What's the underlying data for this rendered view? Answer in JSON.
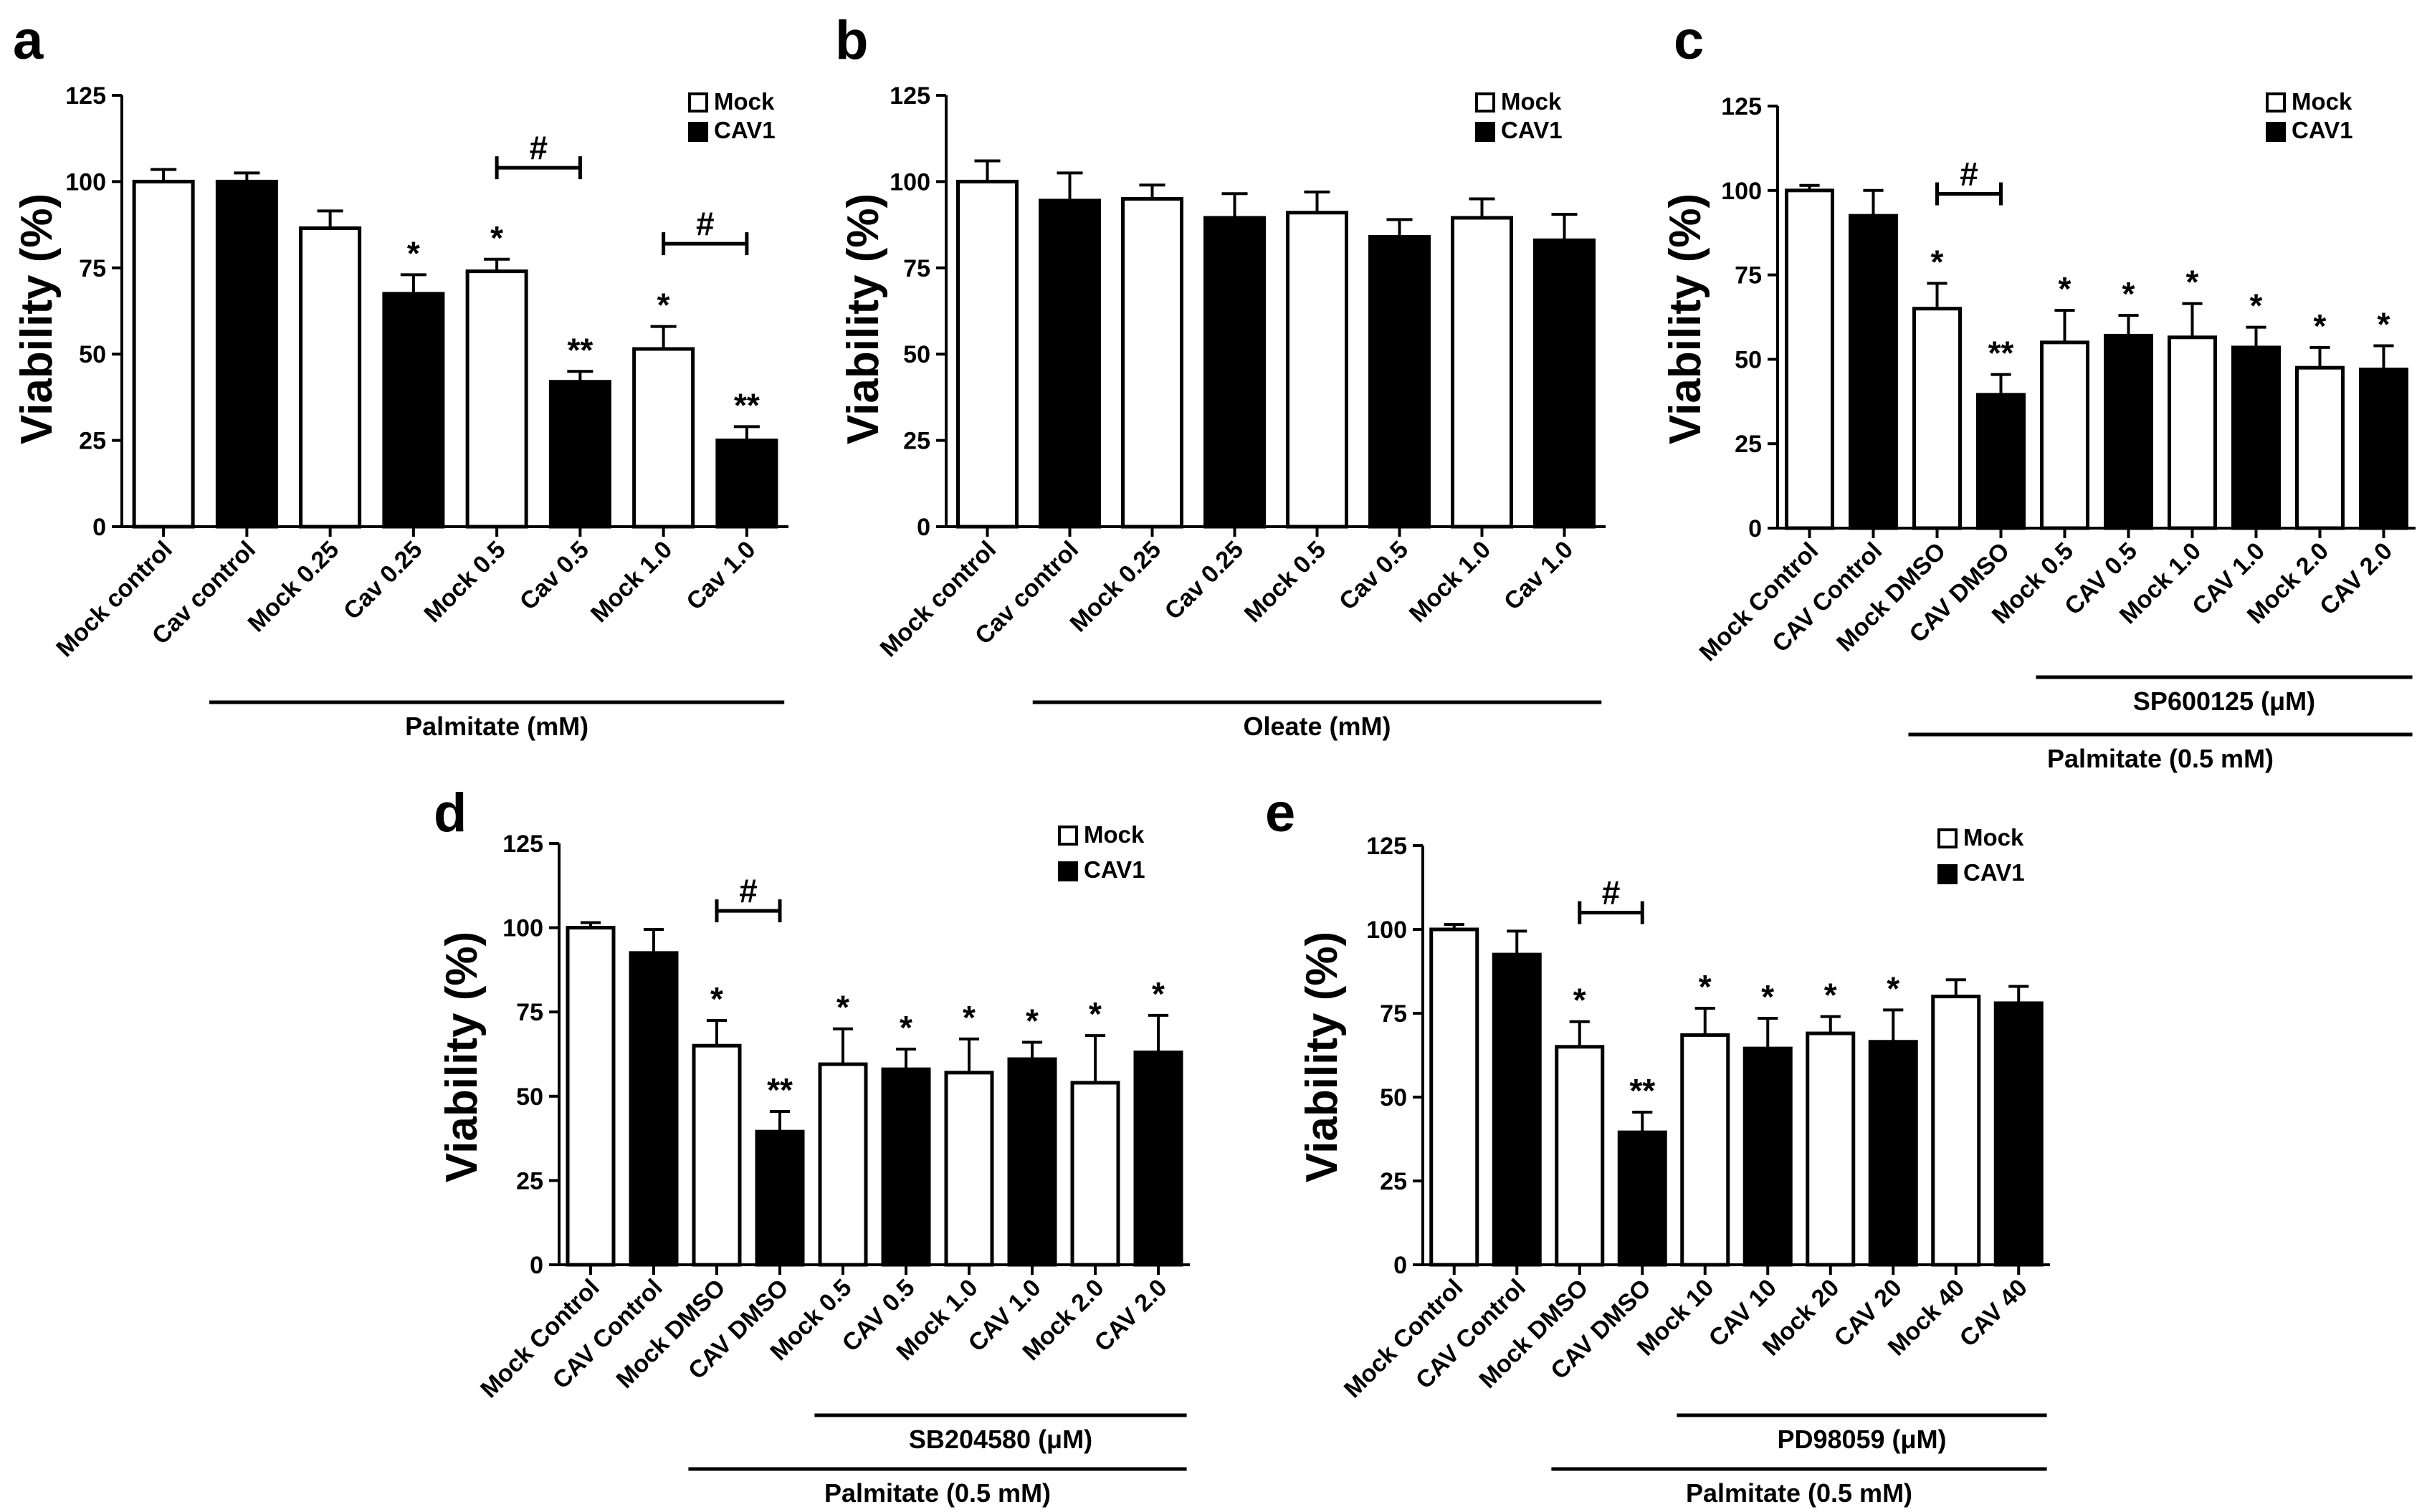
{
  "chart_data": [
    {
      "panel": "a",
      "type": "bar",
      "ylabel": "Viability (%)",
      "ylim": [
        0,
        125
      ],
      "yticks": [
        "0",
        "25",
        "50",
        "75",
        "100",
        "125"
      ],
      "legend": [
        "Mock",
        "CAV1"
      ],
      "categories": [
        "Mock control",
        "Cav control",
        "Mock 0.25",
        "Cav 0.25",
        "Mock 0.5",
        "Cav 0.5",
        "Mock 1.0",
        "Cav 1.0"
      ],
      "fill": [
        "Mock",
        "CAV1",
        "Mock",
        "CAV1",
        "Mock",
        "CAV1",
        "Mock",
        "CAV1"
      ],
      "values": [
        100,
        100,
        86.5,
        67.5,
        74,
        42,
        51.5,
        25
      ],
      "errors": [
        3.5,
        2.5,
        5,
        5.5,
        3.5,
        3,
        6.5,
        4
      ],
      "marks": [
        "",
        "",
        "",
        "*",
        "*",
        "**",
        "*",
        "**"
      ],
      "hash": [
        {
          "from": 4,
          "to": 5,
          "text": "#",
          "level": 104
        },
        {
          "from": 6,
          "to": 7,
          "text": "#",
          "level": 82
        }
      ],
      "groups": [
        {
          "label": "Palmitate (mM)",
          "from": 1,
          "to": 7
        }
      ]
    },
    {
      "panel": "b",
      "type": "bar",
      "ylabel": "Viability (%)",
      "ylim": [
        0,
        125
      ],
      "yticks": [
        "0",
        "25",
        "50",
        "75",
        "100",
        "125"
      ],
      "legend": [
        "Mock",
        "CAV1"
      ],
      "categories": [
        "Mock control",
        "Cav control",
        "Mock 0.25",
        "Cav 0.25",
        "Mock 0.5",
        "Cav 0.5",
        "Mock 1.0",
        "Cav 1.0"
      ],
      "fill": [
        "Mock",
        "CAV1",
        "Mock",
        "CAV1",
        "Mock",
        "CAV1",
        "Mock",
        "CAV1"
      ],
      "values": [
        100,
        94.5,
        95,
        89.5,
        91,
        84,
        89.5,
        83
      ],
      "errors": [
        6,
        8,
        4,
        7,
        6,
        5,
        5.5,
        7.5
      ],
      "marks": [
        "",
        "",
        "",
        "",
        "",
        "",
        "",
        ""
      ],
      "hash": [],
      "groups": [
        {
          "label": "Oleate (mM)",
          "from": 1,
          "to": 7
        }
      ]
    },
    {
      "panel": "c",
      "type": "bar",
      "ylabel": "Viability (%)",
      "ylim": [
        0,
        125
      ],
      "yticks": [
        "0",
        "25",
        "50",
        "75",
        "100",
        "125"
      ],
      "legend": [
        "Mock",
        "CAV1"
      ],
      "categories": [
        "Mock Control",
        "CAV Control",
        "Mock DMSO",
        "CAV DMSO",
        "Mock 0.5",
        "CAV 0.5",
        "Mock 1.0",
        "CAV 1.0",
        "Mock 2.0",
        "CAV  2.0"
      ],
      "fill": [
        "Mock",
        "CAV1",
        "Mock",
        "CAV1",
        "Mock",
        "CAV1",
        "Mock",
        "CAV1",
        "Mock",
        "CAV1"
      ],
      "values": [
        100,
        92.5,
        65,
        39.5,
        55,
        57,
        56.5,
        53.5,
        47.5,
        47
      ],
      "errors": [
        1.5,
        7.5,
        7.5,
        6,
        9.5,
        6,
        10,
        6,
        6,
        7
      ],
      "marks": [
        "",
        "",
        "*",
        "**",
        "*",
        "*",
        "*",
        "*",
        "*",
        "*"
      ],
      "hash": [
        {
          "from": 2,
          "to": 3,
          "text": "#",
          "level": 99
        }
      ],
      "groups": [
        {
          "label": "SP600125 (μM)",
          "from": 4,
          "to": 9
        },
        {
          "label": "Palmitate (0.5 mM)",
          "from": 2,
          "to": 9
        }
      ]
    },
    {
      "panel": "d",
      "type": "bar",
      "ylabel": "Viability (%)",
      "ylim": [
        0,
        125
      ],
      "yticks": [
        "0",
        "25",
        "50",
        "75",
        "100",
        "125"
      ],
      "legend": [
        "Mock",
        "CAV1"
      ],
      "categories": [
        "Mock Control",
        "CAV Control",
        "Mock DMSO",
        "CAV DMSO",
        "Mock 0.5",
        "CAV 0.5",
        "Mock 1.0",
        "CAV 1.0",
        "Mock 2.0",
        "CAV  2.0"
      ],
      "fill": [
        "Mock",
        "CAV1",
        "Mock",
        "CAV1",
        "Mock",
        "CAV1",
        "Mock",
        "CAV1",
        "Mock",
        "CAV1"
      ],
      "values": [
        100,
        92.5,
        65,
        39.5,
        59.5,
        58,
        57,
        61,
        54,
        63
      ],
      "errors": [
        1.5,
        7,
        7.5,
        6,
        10.5,
        6,
        10,
        5,
        14,
        11
      ],
      "marks": [
        "",
        "",
        "*",
        "**",
        "*",
        "*",
        "*",
        "*",
        "*",
        "*"
      ],
      "hash": [
        {
          "from": 2,
          "to": 3,
          "text": "#",
          "level": 105
        }
      ],
      "groups": [
        {
          "label": "SB204580 (μM)",
          "from": 4,
          "to": 9
        },
        {
          "label": "Palmitate (0.5 mM)",
          "from": 2,
          "to": 9
        }
      ]
    },
    {
      "panel": "e",
      "type": "bar",
      "ylabel": "Viability (%)",
      "ylim": [
        0,
        125
      ],
      "yticks": [
        "0",
        "25",
        "50",
        "75",
        "100",
        "125"
      ],
      "legend": [
        "Mock",
        "CAV1"
      ],
      "categories": [
        "Mock Control",
        "CAV Control",
        "Mock DMSO",
        "CAV DMSO",
        "Mock 10",
        "CAV 10",
        "Mock 20",
        "CAV 20",
        "Mock 40",
        "CAV  40"
      ],
      "fill": [
        "Mock",
        "CAV1",
        "Mock",
        "CAV1",
        "Mock",
        "CAV1",
        "Mock",
        "CAV1",
        "Mock",
        "CAV1"
      ],
      "values": [
        100,
        92.5,
        65,
        39.5,
        68.5,
        64.5,
        69,
        66.5,
        80,
        78
      ],
      "errors": [
        1.5,
        7,
        7.5,
        6,
        8,
        9,
        5,
        9.5,
        5,
        5
      ],
      "marks": [
        "",
        "",
        "*",
        "**",
        "*",
        "*",
        "*",
        "*",
        "",
        ""
      ],
      "hash": [
        {
          "from": 2,
          "to": 3,
          "text": "#",
          "level": 105
        }
      ],
      "groups": [
        {
          "label": "PD98059 (μM)",
          "from": 4,
          "to": 9
        },
        {
          "label": "Palmitate (0.5 mM)",
          "from": 2,
          "to": 9
        }
      ]
    }
  ]
}
